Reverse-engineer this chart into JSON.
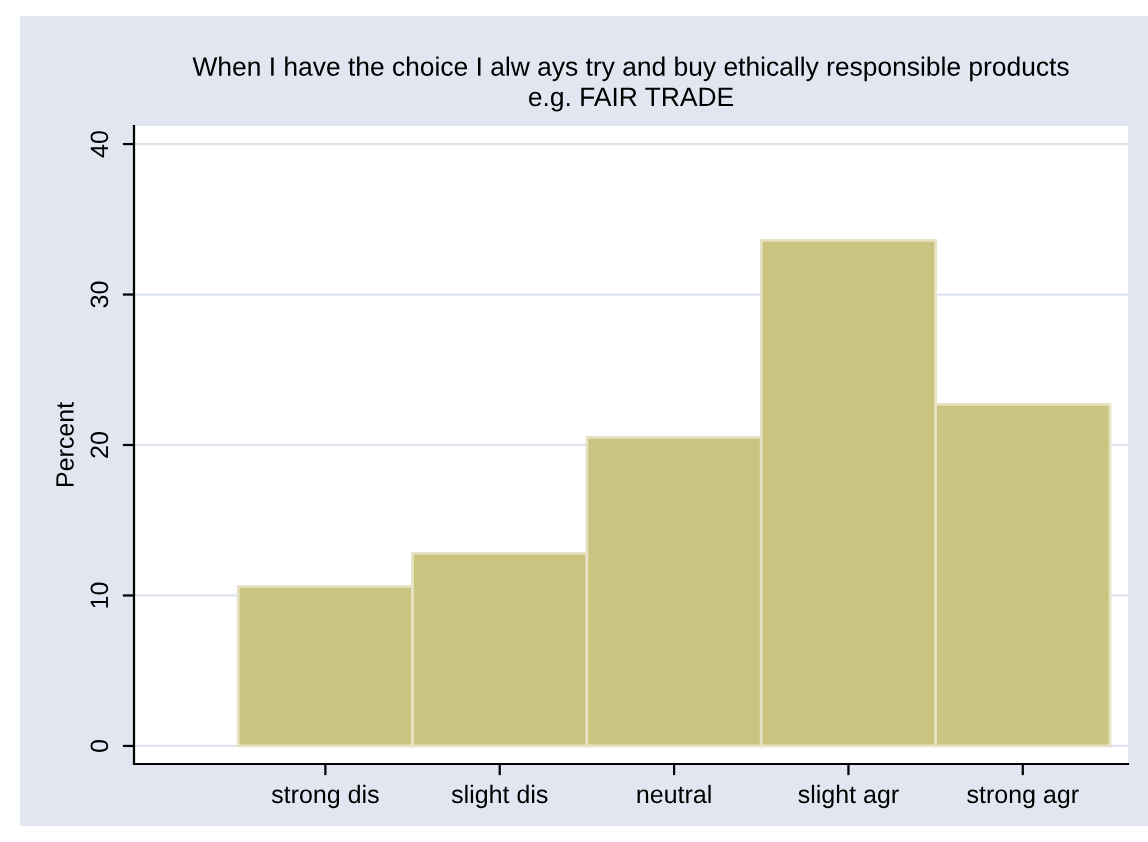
{
  "chart_data": {
    "type": "bar",
    "title": "When I have the choice I alw ays try and buy ethically responsible products\ne.g. FAIR TRADE",
    "ylabel": "Percent",
    "categories": [
      "strong dis",
      "slight dis",
      "neutral",
      "slight agr",
      "strong agr"
    ],
    "values": [
      10.6,
      12.8,
      20.5,
      33.6,
      22.7
    ],
    "color": "#cbc380",
    "ylim": [
      -1.2,
      41.2
    ],
    "yticks": [
      0,
      10,
      20,
      30,
      40
    ],
    "grid": "y"
  }
}
